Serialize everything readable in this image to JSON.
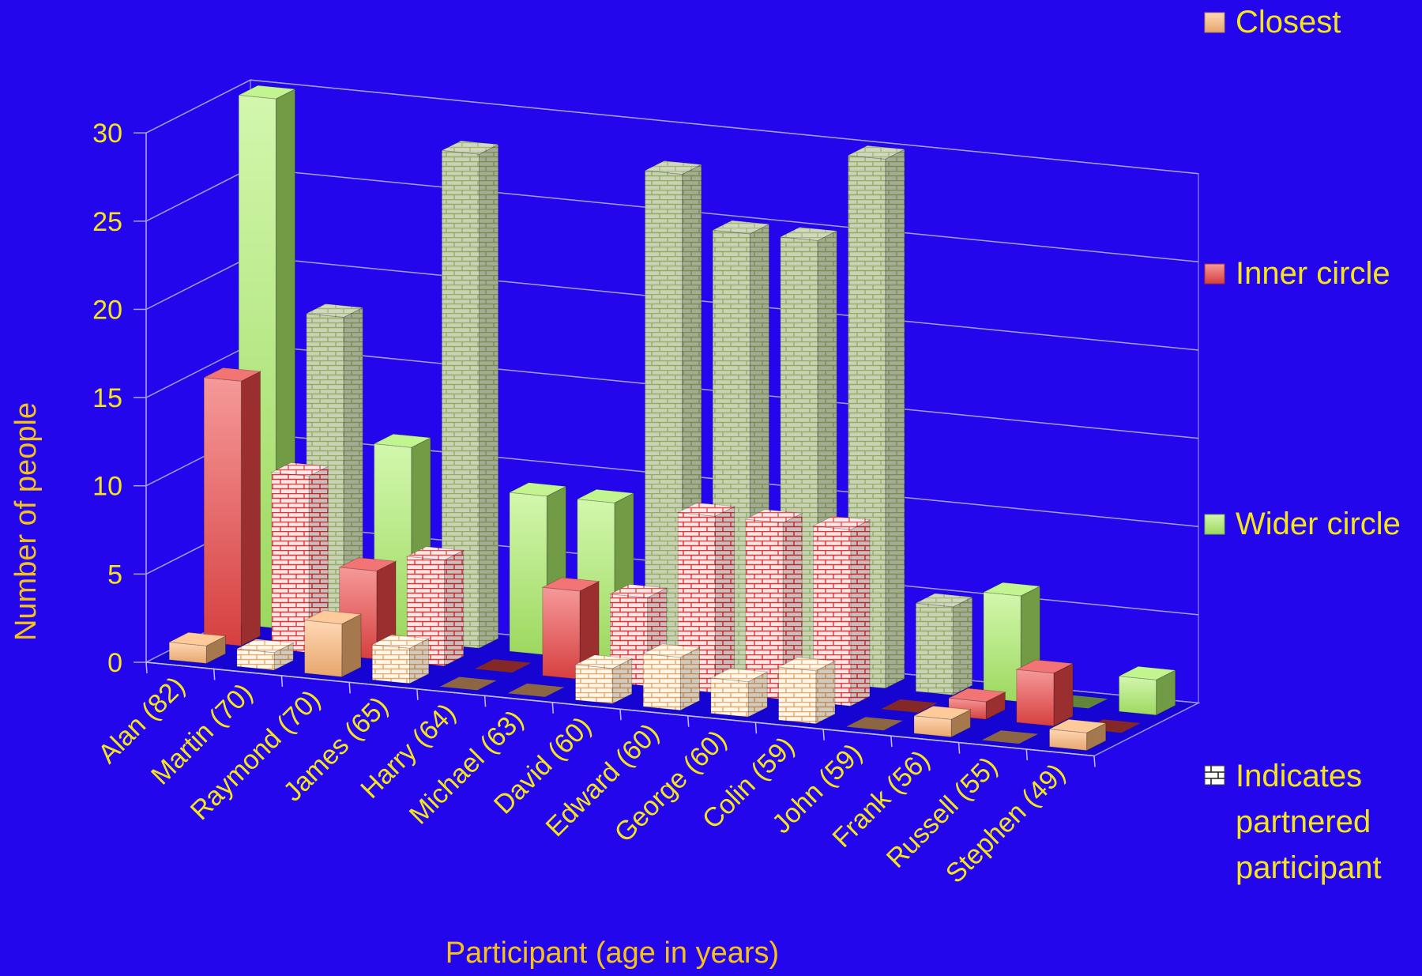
{
  "chart_data": {
    "type": "bar",
    "subtype": "3d-clustered-bar",
    "title": "",
    "xlabel": "Participant (age in years)",
    "ylabel": "Number of people",
    "ylim": [
      0,
      30
    ],
    "yticks": [
      0,
      5,
      10,
      15,
      20,
      25,
      30
    ],
    "grid": true,
    "legend_position": "right",
    "categories": [
      "Alan (82)",
      "Martin (70)",
      "Raymond (70)",
      "James (65)",
      "Harry (64)",
      "Michael (63)",
      "David (60)",
      "Edward (60)",
      "George (60)",
      "Colin (59)",
      "John (59)",
      "Frank (56)",
      "Russell (55)",
      "Stephen (49)"
    ],
    "partnered": [
      false,
      true,
      false,
      true,
      false,
      false,
      true,
      true,
      true,
      true,
      true,
      false,
      false,
      false
    ],
    "series": [
      {
        "name": "Closest",
        "color": "#ffb878",
        "values": [
          1,
          1,
          3,
          2,
          0,
          0,
          2,
          3,
          2,
          3,
          0,
          1,
          0,
          1
        ]
      },
      {
        "name": "Inner circle",
        "color": "#ee4646",
        "values": [
          15,
          10,
          5,
          6,
          0,
          5,
          5,
          10,
          10,
          10,
          0,
          1,
          3,
          0
        ]
      },
      {
        "name": "Wider circle",
        "color": "#aef06a",
        "values": [
          30,
          18,
          11,
          28,
          9,
          9,
          28,
          25,
          25,
          30,
          5,
          6,
          0,
          2
        ]
      }
    ],
    "legend_extra": "Indicates partnered participant"
  }
}
